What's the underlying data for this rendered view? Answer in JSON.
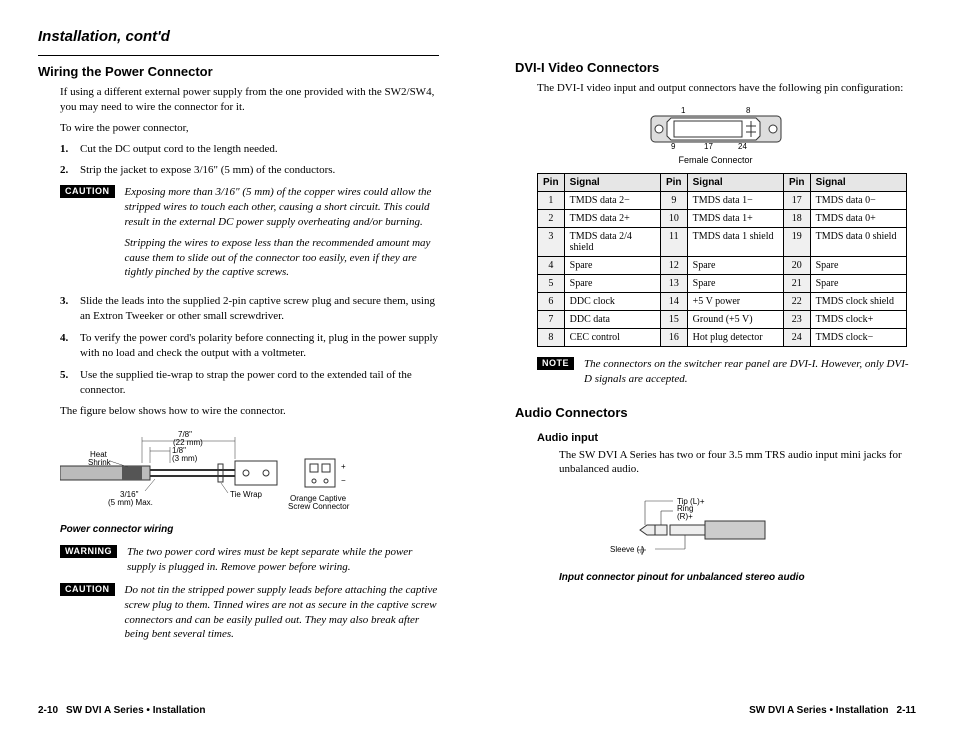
{
  "left": {
    "section_title": "Installation, cont'd",
    "heading": "Wiring the Power Connector",
    "intro": "If using a different external power supply from the one provided with the SW2/SW4, you may need to wire the connector for it.",
    "intro2": "To wire the power connector,",
    "steps": [
      "Cut the DC output cord to the length needed.",
      "Strip the jacket to expose 3/16\" (5 mm) of the conductors."
    ],
    "caution1_label": "CAUTION",
    "caution1_p1": "Exposing more than 3/16\" (5 mm) of the copper wires could allow the stripped wires to touch each other, causing a short circuit.  This could result in the external DC power supply overheating and/or burning.",
    "caution1_p2": "Stripping the wires to expose less than the recommended amount may cause them to slide out of the connector too easily, even if they are tightly pinched by the captive screws.",
    "steps2": [
      "Slide the leads into the supplied 2-pin captive screw plug and secure them, using an Extron Tweeker or other small screwdriver.",
      "To verify the power cord's polarity before connecting it, plug in the power supply with no load and check the output with a voltmeter.",
      "Use the supplied tie-wrap to strap the power cord to the extended tail of the connector."
    ],
    "fig_intro": "The figure below shows how to wire the connector.",
    "fig_labels": {
      "heat_shrink": "Heat\nShrink",
      "l78": "7/8\"\n(22 mm)",
      "l18": "1/8\"\n(3 mm)",
      "l316": "3/16\"\n(5 mm) Max.",
      "tie_wrap": "Tie Wrap",
      "orange": "Orange Captive\nScrew Connector"
    },
    "fig_caption": "Power connector wiring",
    "warning_label": "WARNING",
    "warning_text": "The two power cord wires must be kept separate while the power supply is plugged in.  Remove power before wiring.",
    "caution2_label": "CAUTION",
    "caution2_text": "Do not tin the stripped power supply leads before attaching the captive screw plug to them.  Tinned wires are not as secure in the captive screw connectors and can be easily pulled out.  They may also break after being bent several times.",
    "footer_page": "2-10",
    "footer_title": "SW DVI A Series • Installation"
  },
  "right": {
    "heading1": "DVI-I Video Connectors",
    "intro1": "The DVI-I video input and output connectors have the following pin configuration:",
    "dvi_label": "Female Connector",
    "dvi_nums": {
      "a": "1",
      "b": "8",
      "c": "9",
      "d": "17",
      "e": "24"
    },
    "table_headers": [
      "Pin",
      "Signal",
      "Pin",
      "Signal",
      "Pin",
      "Signal"
    ],
    "table_rows": [
      [
        "1",
        "TMDS data 2−",
        "9",
        "TMDS data 1−",
        "17",
        "TMDS data 0−"
      ],
      [
        "2",
        "TMDS data 2+",
        "10",
        "TMDS data 1+",
        "18",
        "TMDS data 0+"
      ],
      [
        "3",
        "TMDS data 2/4 shield",
        "11",
        "TMDS data 1 shield",
        "19",
        "TMDS data 0 shield"
      ],
      [
        "4",
        "Spare",
        "12",
        "Spare",
        "20",
        "Spare"
      ],
      [
        "5",
        "Spare",
        "13",
        "Spare",
        "21",
        "Spare"
      ],
      [
        "6",
        "DDC clock",
        "14",
        "+5 V power",
        "22",
        "TMDS clock shield"
      ],
      [
        "7",
        "DDC data",
        "15",
        "Ground (+5 V)",
        "23",
        "TMDS clock+"
      ],
      [
        "8",
        "CEC control",
        "16",
        "Hot plug detector",
        "24",
        "TMDS clock−"
      ]
    ],
    "note_label": "NOTE",
    "note_text": "The connectors on the switcher rear panel are DVI-I.  However, only DVI-D signals are accepted.",
    "heading2": "Audio Connectors",
    "heading3": "Audio input",
    "audio_text": "The SW DVI A Series has two or four 3.5 mm TRS audio input mini jacks for unbalanced audio.",
    "trs": {
      "tip": "Tip (L)+",
      "ring": "Ring\n(R)+",
      "sleeve": "Sleeve ( )"
    },
    "audio_caption": "Input connector pinout for unbalanced stereo audio",
    "footer_title": "SW DVI A Series • Installation",
    "footer_page": "2-11"
  }
}
